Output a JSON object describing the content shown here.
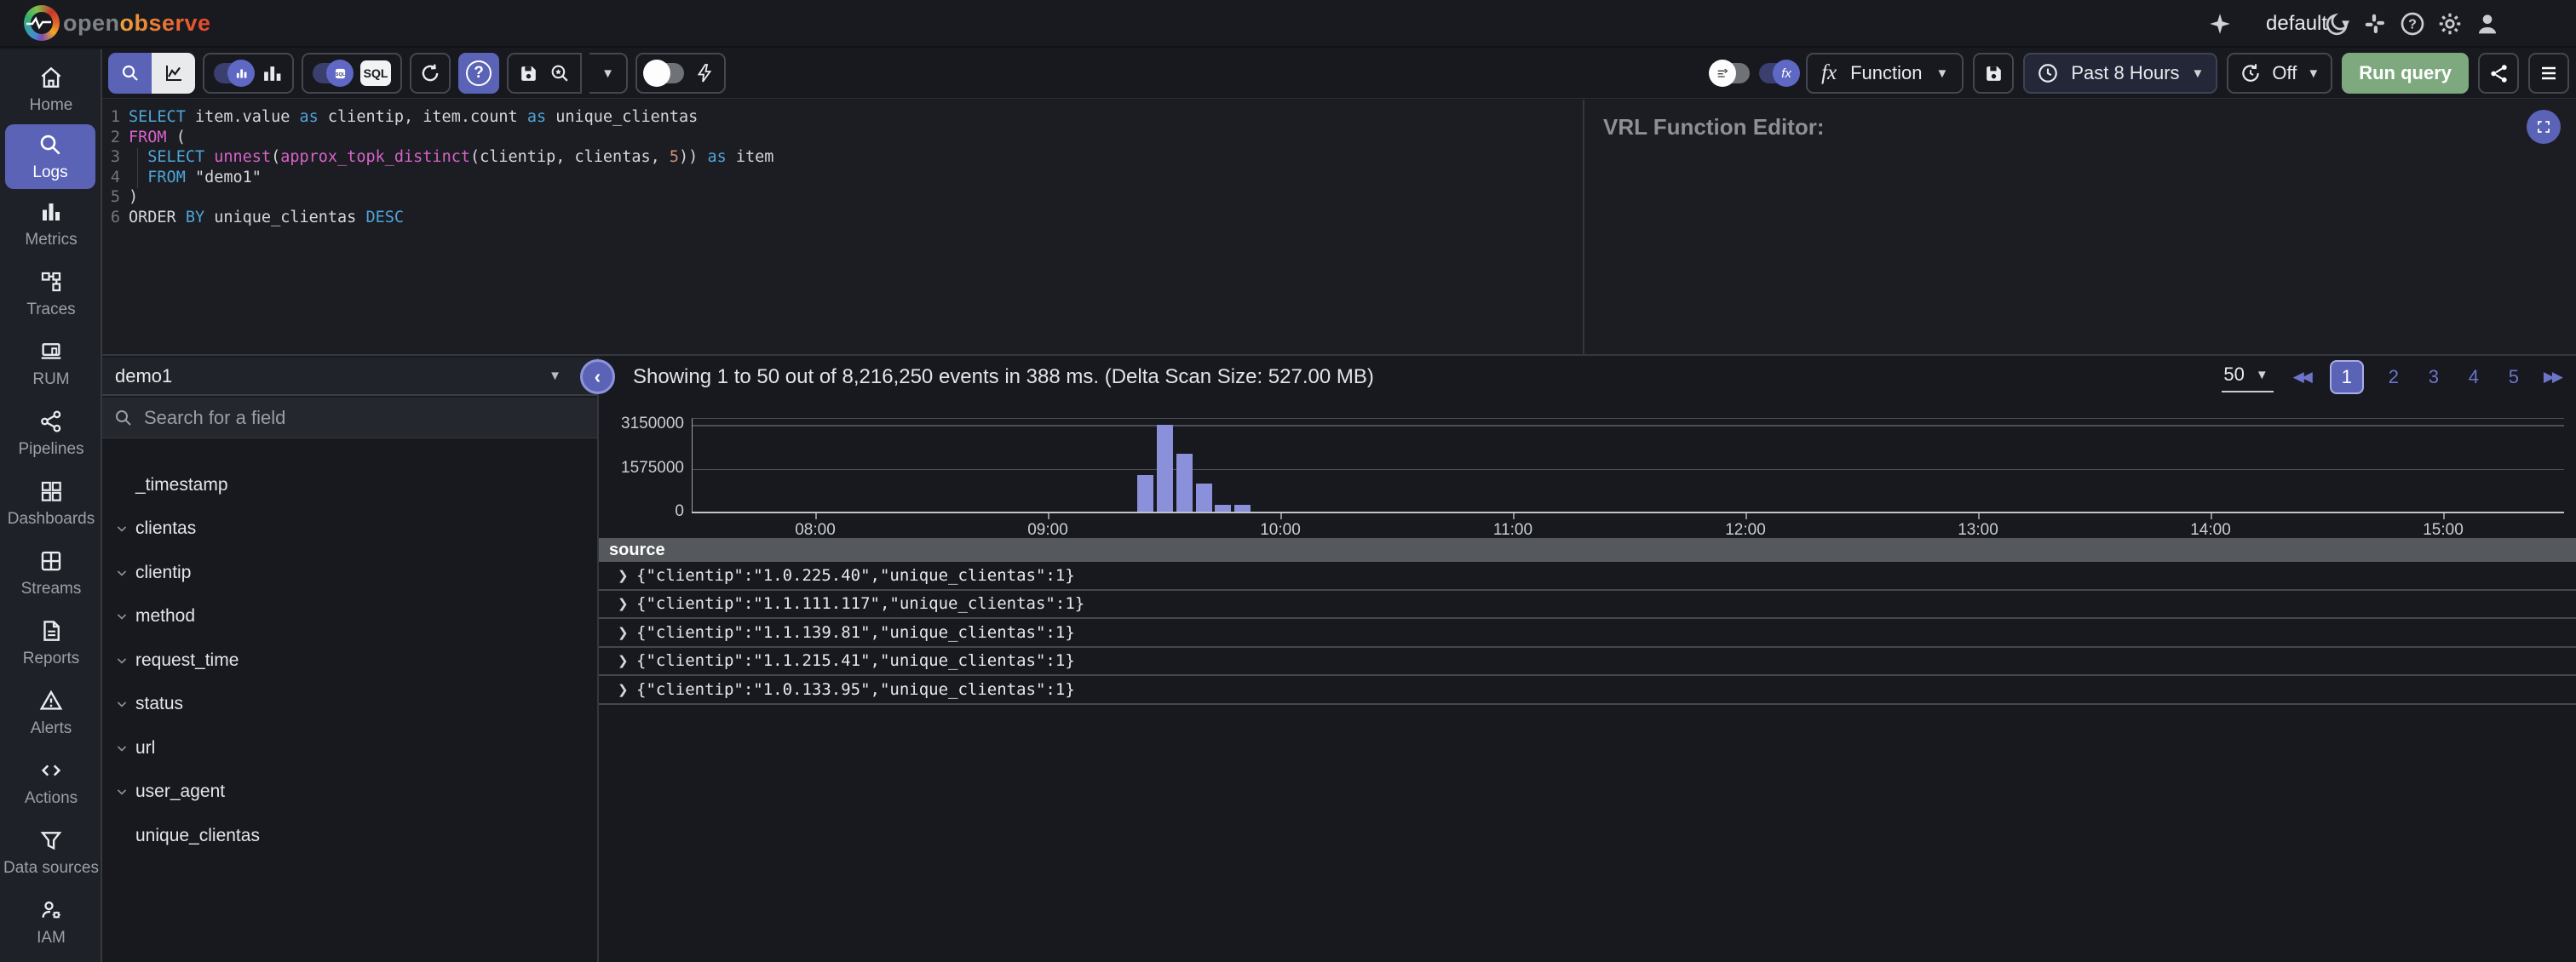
{
  "header": {
    "logo_open": "open",
    "logo_observe": "observe",
    "org": "default",
    "icons": [
      "moon",
      "slack",
      "help",
      "gear",
      "user"
    ]
  },
  "sidebar": {
    "items": [
      {
        "label": "Home",
        "icon": "home",
        "active": false
      },
      {
        "label": "Logs",
        "icon": "search",
        "active": true
      },
      {
        "label": "Metrics",
        "icon": "metrics",
        "active": false
      },
      {
        "label": "Traces",
        "icon": "traces",
        "active": false
      },
      {
        "label": "RUM",
        "icon": "rum",
        "active": false
      },
      {
        "label": "Pipelines",
        "icon": "pipelines",
        "active": false
      },
      {
        "label": "Dashboards",
        "icon": "dashboards",
        "active": false
      },
      {
        "label": "Streams",
        "icon": "streams",
        "active": false
      },
      {
        "label": "Reports",
        "icon": "reports",
        "active": false
      },
      {
        "label": "Alerts",
        "icon": "alerts",
        "active": false
      },
      {
        "label": "Actions",
        "icon": "actions",
        "active": false
      },
      {
        "label": "Data sources",
        "icon": "datasources",
        "active": false
      },
      {
        "label": "IAM",
        "icon": "iam",
        "active": false
      }
    ]
  },
  "toolbar": {
    "sql_badge": "SQL",
    "fx_label": "fx",
    "function_label": "Function",
    "time_range_label": "Past 8 Hours",
    "refresh_label": "Off",
    "run_button": "Run query"
  },
  "editor": {
    "lines": [
      [
        {
          "c": "k",
          "t": "SELECT"
        },
        {
          "c": "d",
          "t": " item.value "
        },
        {
          "c": "k",
          "t": "as"
        },
        {
          "c": "d",
          "t": " clientip, item.count "
        },
        {
          "c": "k",
          "t": "as"
        },
        {
          "c": "d",
          "t": " unique_clientas"
        }
      ],
      [
        {
          "c": "m",
          "t": "FROM"
        },
        {
          "c": "d",
          "t": " ("
        }
      ],
      [
        {
          "c": "d",
          "t": "  "
        },
        {
          "c": "k",
          "t": "SELECT"
        },
        {
          "c": "d",
          "t": " "
        },
        {
          "c": "m",
          "t": "unnest"
        },
        {
          "c": "d",
          "t": "("
        },
        {
          "c": "m",
          "t": "approx_topk_distinct"
        },
        {
          "c": "d",
          "t": "(clientip, clientas, "
        },
        {
          "c": "n",
          "t": "5"
        },
        {
          "c": "d",
          "t": ")) "
        },
        {
          "c": "k",
          "t": "as"
        },
        {
          "c": "d",
          "t": " item"
        }
      ],
      [
        {
          "c": "d",
          "t": "  "
        },
        {
          "c": "k",
          "t": "FROM"
        },
        {
          "c": "d",
          "t": " \"demo1\""
        }
      ],
      [
        {
          "c": "d",
          "t": ")"
        }
      ],
      [
        {
          "c": "d",
          "t": "ORDER "
        },
        {
          "c": "k",
          "t": "BY"
        },
        {
          "c": "d",
          "t": " unique_clientas "
        },
        {
          "c": "k",
          "t": "DESC"
        }
      ]
    ]
  },
  "vrl": {
    "title": "VRL Function Editor:"
  },
  "stream": {
    "selected": "demo1",
    "search_placeholder": "Search for a field",
    "fields": [
      {
        "name": "_timestamp",
        "expandable": false
      },
      {
        "name": "clientas",
        "expandable": true
      },
      {
        "name": "clientip",
        "expandable": true
      },
      {
        "name": "method",
        "expandable": true
      },
      {
        "name": "request_time",
        "expandable": true
      },
      {
        "name": "status",
        "expandable": true
      },
      {
        "name": "url",
        "expandable": true
      },
      {
        "name": "user_agent",
        "expandable": true
      },
      {
        "name": "unique_clientas",
        "expandable": false
      }
    ]
  },
  "results": {
    "summary": "Showing 1 to 50 out of 8,216,250 events in 388 ms. (Delta Scan Size: 527.00 MB)",
    "per_page": "50",
    "pages": [
      "1",
      "2",
      "3",
      "4",
      "5"
    ],
    "active_page": "1",
    "table_header": "source",
    "rows": [
      "{\"clientip\":\"1.0.225.40\",\"unique_clientas\":1}",
      "{\"clientip\":\"1.1.111.117\",\"unique_clientas\":1}",
      "{\"clientip\":\"1.1.139.81\",\"unique_clientas\":1}",
      "{\"clientip\":\"1.1.215.41\",\"unique_clientas\":1}",
      "{\"clientip\":\"1.0.133.95\",\"unique_clientas\":1}"
    ]
  },
  "chart_data": {
    "type": "bar",
    "title": "events histogram",
    "x_ticks": [
      "08:00",
      "09:00",
      "10:00",
      "11:00",
      "12:00",
      "13:00",
      "14:00",
      "15:00"
    ],
    "bars": [
      {
        "time": "09:25",
        "hour": 9.4167,
        "value": 1350000
      },
      {
        "time": "09:30",
        "hour": 9.5,
        "value": 3150000
      },
      {
        "time": "09:35",
        "hour": 9.5833,
        "value": 2100000
      },
      {
        "time": "09:40",
        "hour": 9.6667,
        "value": 1030000
      },
      {
        "time": "09:45",
        "hour": 9.75,
        "value": 260000
      },
      {
        "time": "09:50",
        "hour": 9.8333,
        "value": 280000
      }
    ],
    "yticks": [
      0,
      1575000,
      3150000
    ],
    "ylim": [
      0,
      3400000
    ],
    "bar_color": "#8a90d9",
    "grid": true,
    "legend": false
  }
}
